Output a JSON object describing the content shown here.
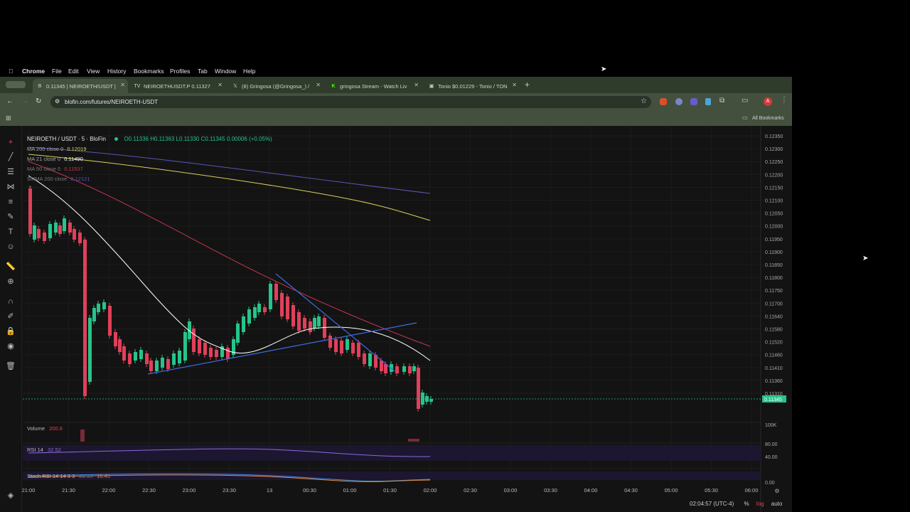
{
  "menubar": {
    "items": [
      "Chrome",
      "File",
      "Edit",
      "View",
      "History",
      "Bookmarks",
      "Profiles",
      "Tab",
      "Window",
      "Help"
    ]
  },
  "tabs": [
    {
      "label": "0.11345 | NEIROETH/USDT |",
      "active": true
    },
    {
      "label": "NEIROETHUSDT.P 0.11327",
      "active": false
    },
    {
      "label": "(8) Gringosa (@Gringosa_) /",
      "active": false
    },
    {
      "label": "gringosa Stream - Watch Liv",
      "active": false
    },
    {
      "label": "Tonio $0.01229 - Tonio / TON",
      "active": false
    }
  ],
  "address": {
    "url": "blofin.com/futures/NEIROETH-USDT"
  },
  "bookmarks": {
    "all_label": "All Bookmarks"
  },
  "profile_initial": "A",
  "chart": {
    "symbol": "NEIROETH / USDT · 5 · BloFin",
    "ohlc": {
      "o": "O0.11336",
      "h": "H0.11363",
      "l": "L0.11330",
      "c": "C0.11345",
      "chg": "0.00006 (+0.05%)"
    },
    "indicators": [
      {
        "name": "MA 200 close 0",
        "value": "0.12019",
        "color": "#d9d05a"
      },
      {
        "name": "MA 21 close 0",
        "value": "0.11490",
        "color": "#ffffff"
      },
      {
        "name": "MA 50 close 0",
        "value": "0.11537",
        "color": "#c2374f"
      },
      {
        "name": "SMMA 200 close",
        "value": "0.12121",
        "color": "#5a56b8"
      }
    ],
    "price_axis": [
      "0.12350",
      "0.12300",
      "0.12250",
      "0.12200",
      "0.12150",
      "0.12100",
      "0.12050",
      "0.12000",
      "0.11950",
      "0.11900",
      "0.11850",
      "0.11800",
      "0.11750",
      "0.11700",
      "0.11640",
      "0.11580",
      "0.11520",
      "0.11460",
      "0.11410",
      "0.11360",
      "0.11310"
    ],
    "current_price": "0.11345",
    "time_axis": [
      "21:00",
      "21:30",
      "22:00",
      "22:30",
      "23:00",
      "23:30",
      "13",
      "00:30",
      "01:00",
      "01:30",
      "02:00",
      "02:30",
      "03:00",
      "03:30",
      "04:00",
      "04:30",
      "05:00",
      "05:30",
      "06:00"
    ],
    "volume": {
      "label": "Volume",
      "value": "200.8",
      "axis": "100K"
    },
    "rsi": {
      "label": "RSI 14",
      "value": "32.52",
      "axis_top": "80.00",
      "axis_mid": "40.00"
    },
    "stoch": {
      "label": "Stoch RSI 14 14 3 3",
      "k": "22.33",
      "d": "16.45",
      "axis": "0.00"
    },
    "footer": {
      "time": "02:04:57 (UTC-4)",
      "pct": "%",
      "log": "log",
      "auto": "auto"
    }
  },
  "colors": {
    "up": "#26c48a",
    "down": "#e0405a",
    "ma200": "#d9d05a",
    "ma21": "#ffffff",
    "ma50": "#c2374f",
    "smma": "#5a56b8",
    "trend": "#3f6be0"
  }
}
